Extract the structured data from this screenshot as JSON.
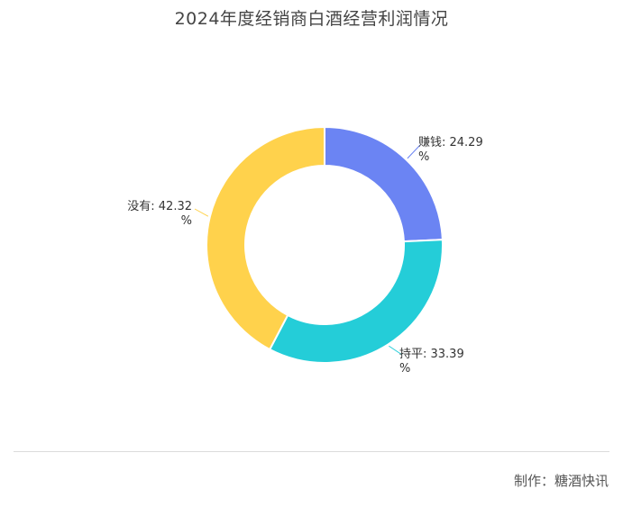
{
  "chart_data": {
    "type": "pie",
    "title": "2024年度经销商白酒经营利润情况",
    "labels": [
      "赚钱",
      "持平",
      "没有"
    ],
    "values": [
      24.29,
      33.39,
      42.32
    ],
    "display_labels": [
      {
        "line1": "赚钱: 24.29",
        "line2": "%"
      },
      {
        "line1": "持平: 33.39",
        "line2": "%"
      },
      {
        "line1": "没有: 42.32",
        "line2": "%"
      }
    ],
    "colors": [
      "#6b84f3",
      "#24cdd8",
      "#ffd24c"
    ],
    "donut": true
  },
  "footer": {
    "credit": "制作：糖酒快讯"
  }
}
